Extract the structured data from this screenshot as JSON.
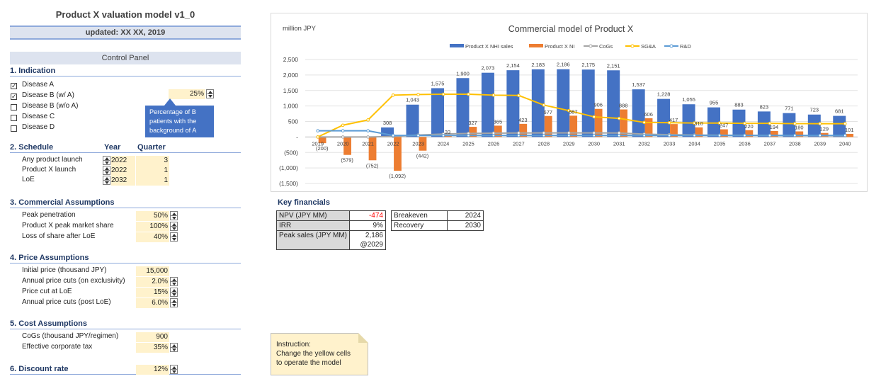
{
  "header": {
    "title": "Product X valuation model v1_0",
    "updated": "updated: XX XX, 2019",
    "control_panel": "Control Panel"
  },
  "indication": {
    "heading": "1. Indication",
    "items": [
      {
        "label": "Disease A",
        "checked": true
      },
      {
        "label": "Disease B (w/ A)",
        "checked": true
      },
      {
        "label": "Disease B (w/o A)",
        "checked": false
      },
      {
        "label": "Disease C",
        "checked": false
      },
      {
        "label": "Disease D",
        "checked": false
      }
    ],
    "disease_b_pct": "25%",
    "callout": "Percentage of B patients with the background of A"
  },
  "schedule": {
    "heading": "2. Schedule",
    "col_year": "Year",
    "col_quarter": "Quarter",
    "rows": [
      {
        "label": "Any product launch",
        "year": "2022",
        "quarter": "3"
      },
      {
        "label": "Product X launch",
        "year": "2022",
        "quarter": "1"
      },
      {
        "label": "LoE",
        "year": "2032",
        "quarter": "1"
      }
    ]
  },
  "commercial": {
    "heading": "3. Commercial Assumptions",
    "rows": [
      {
        "label": "Peak penetration",
        "value": "50%"
      },
      {
        "label": "Product X peak market share",
        "value": "100%"
      },
      {
        "label": "Loss of share after LoE",
        "value": "40%"
      }
    ]
  },
  "price": {
    "heading": "4. Price Assumptions",
    "rows": [
      {
        "label": "Initial price (thousand JPY)",
        "value": "15,000"
      },
      {
        "label": "Annual price cuts (on exclusivity)",
        "value": "2.0%"
      },
      {
        "label": "Price cut at LoE",
        "value": "15%"
      },
      {
        "label": "Annual price cuts (post LoE)",
        "value": "6.0%"
      }
    ]
  },
  "cost": {
    "heading": "5. Cost Assumptions",
    "rows": [
      {
        "label": "CoGs (thousand JPY/regimen)",
        "value": "900"
      },
      {
        "label": "Effective corporate tax",
        "value": "35%"
      }
    ]
  },
  "discount": {
    "heading": "6. Discount rate",
    "value": "12%"
  },
  "key_financials": {
    "title": "Key financials",
    "npv_label": "NPV (JPY MM)",
    "npv_value": "-474",
    "irr_label": "IRR",
    "irr_value": "9%",
    "peak_label": "Peak sales (JPY MM)",
    "peak_value": "2,186",
    "peak_year": "@2029",
    "breakeven_label": "Breakeven",
    "breakeven_value": "2024",
    "recovery_label": "Recovery",
    "recovery_value": "2030"
  },
  "instruction": {
    "line1": "Instruction:",
    "line2": "Change the yellow cells",
    "line3": "to operate the model"
  },
  "colors": {
    "sales": "#4472c4",
    "ni": "#ed7d31",
    "cogs": "#a5a5a5",
    "sga": "#ffc000",
    "rd": "#5b9bd5",
    "input_cell": "#fff2cc",
    "header_band": "#dde3ef"
  },
  "chart_data": {
    "type": "bar",
    "title": "Commercial model of Product X",
    "unit_label": "million JPY",
    "categories": [
      "2019",
      "2020",
      "2021",
      "2022",
      "2023",
      "2024",
      "2025",
      "2026",
      "2027",
      "2028",
      "2029",
      "2030",
      "2031",
      "2032",
      "2033",
      "2034",
      "2035",
      "2036",
      "2037",
      "2038",
      "2039",
      "2040"
    ],
    "ylim": [
      -1500,
      2500
    ],
    "yticks": [
      2500,
      2000,
      1500,
      1000,
      500,
      0,
      -500,
      -1000,
      -1500
    ],
    "ytick_labels": [
      "2,500",
      "2,000",
      "1,500",
      "1,000",
      "500",
      "-",
      "(500)",
      "(1,000)",
      "(1,500)"
    ],
    "series": [
      {
        "name": "Product X NHI sales",
        "type": "bar",
        "values": [
          0,
          0,
          0,
          308,
          1043,
          1575,
          1900,
          2073,
          2154,
          2183,
          2186,
          2175,
          2151,
          1537,
          1228,
          1055,
          955,
          883,
          823,
          771,
          723,
          681
        ],
        "labels": [
          "",
          "",
          "",
          "308",
          "1,043",
          "1,575",
          "1,900",
          "2,073",
          "2,154",
          "2,183",
          "2,186",
          "2,175",
          "2,151",
          "1,537",
          "1,228",
          "1,055",
          "955",
          "883",
          "823",
          "771",
          "723",
          "681"
        ]
      },
      {
        "name": "Product X NI",
        "type": "bar",
        "values": [
          -200,
          -579,
          -752,
          -1092,
          -442,
          33,
          327,
          365,
          423,
          677,
          687,
          906,
          888,
          606,
          417,
          310,
          247,
          220,
          194,
          180,
          129,
          101
        ],
        "labels": [
          "(200)",
          "(579)",
          "(752)",
          "(1,092)",
          "(442)",
          "33",
          "327",
          "365",
          "423",
          "677",
          "687",
          "906",
          "888",
          "606",
          "417",
          "310",
          "247",
          "220",
          "194",
          "180",
          "129",
          "101"
        ]
      },
      {
        "name": "CoGs",
        "type": "line",
        "values": [
          0,
          0,
          0,
          18,
          63,
          95,
          114,
          124,
          129,
          131,
          131,
          131,
          129,
          92,
          74,
          63,
          57,
          53,
          49,
          46,
          43,
          41
        ]
      },
      {
        "name": "SG&A",
        "type": "line",
        "values": [
          0,
          380,
          550,
          1350,
          1370,
          1380,
          1380,
          1350,
          1340,
          1030,
          850,
          650,
          600,
          470,
          460,
          450,
          450,
          440,
          440,
          430,
          430,
          430
        ]
      },
      {
        "name": "R&D",
        "type": "line",
        "values": [
          200,
          200,
          200,
          50,
          50,
          50,
          50,
          50,
          50,
          50,
          50,
          50,
          50,
          50,
          50,
          50,
          50,
          50,
          50,
          50,
          50,
          50
        ]
      }
    ]
  }
}
